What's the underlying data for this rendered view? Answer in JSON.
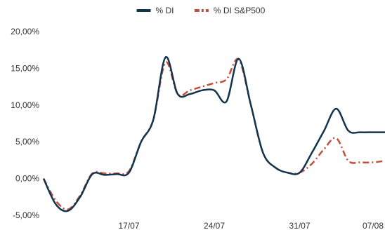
{
  "chart_data": {
    "type": "line",
    "title": "",
    "xlabel": "",
    "ylabel": "",
    "x_ticks": [
      "17/07",
      "24/07",
      "31/07",
      "07/08"
    ],
    "y_ticks": [
      "20,00%",
      "15,00%",
      "10,00%",
      "5,00%",
      "0,00%",
      "-5,00%"
    ],
    "ylim": [
      -5,
      20
    ],
    "grid": false,
    "legend_position": "top-center",
    "series": [
      {
        "name": "% DI",
        "color": "#12344d",
        "style": "solid",
        "x": [
          "10/07",
          "11/07",
          "12/07",
          "13/07",
          "14/07",
          "15/07",
          "16/07",
          "17/07",
          "18/07",
          "19/07",
          "20/07",
          "21/07",
          "22/07",
          "23/07",
          "24/07",
          "25/07",
          "26/07",
          "27/07",
          "28/07",
          "29/07",
          "30/07",
          "31/07",
          "01/08",
          "02/08",
          "03/08",
          "04/08",
          "05/08",
          "06/08",
          "07/08"
        ],
        "values": [
          0.0,
          -3.5,
          -4.4,
          -2.5,
          0.6,
          0.5,
          0.6,
          0.8,
          5.0,
          8.0,
          16.5,
          11.5,
          11.5,
          12.0,
          12.0,
          10.5,
          16.3,
          10.0,
          3.5,
          1.5,
          0.8,
          0.8,
          3.5,
          6.5,
          9.5,
          6.5,
          6.3,
          6.3,
          6.3
        ]
      },
      {
        "name": "% DI S&P500",
        "color": "#c0503e",
        "style": "dash-dot",
        "x": [
          "10/07",
          "11/07",
          "12/07",
          "13/07",
          "14/07",
          "15/07",
          "16/07",
          "17/07",
          "18/07",
          "19/07",
          "20/07",
          "21/07",
          "22/07",
          "23/07",
          "24/07",
          "25/07",
          "26/07",
          "27/07",
          "28/07",
          "29/07",
          "30/07",
          "31/07",
          "01/08",
          "02/08",
          "03/08",
          "04/08",
          "05/08",
          "06/08",
          "07/08"
        ],
        "values": [
          0.0,
          -3.0,
          -4.2,
          -2.3,
          0.7,
          0.7,
          0.7,
          1.0,
          5.0,
          8.0,
          15.8,
          11.5,
          12.0,
          12.5,
          13.0,
          13.5,
          16.2,
          10.0,
          3.5,
          1.5,
          0.8,
          0.8,
          2.0,
          4.0,
          5.5,
          2.4,
          2.2,
          2.2,
          2.4
        ]
      }
    ]
  }
}
